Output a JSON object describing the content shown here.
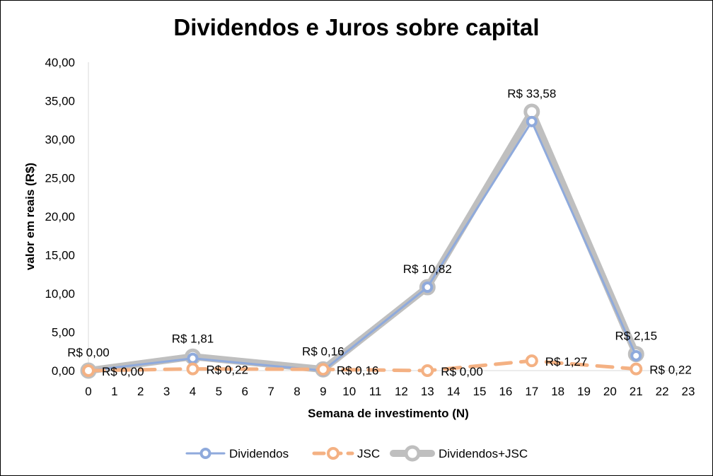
{
  "chart_data": {
    "type": "line",
    "title": "Dividendos e Juros sobre capital",
    "xlabel": "Semana de investimento (N)",
    "ylabel": "valor em reais (R$)",
    "xlim": [
      0,
      23
    ],
    "ylim": [
      0,
      40
    ],
    "x_ticks": [
      "0",
      "1",
      "2",
      "3",
      "4",
      "5",
      "6",
      "7",
      "8",
      "9",
      "10",
      "11",
      "12",
      "13",
      "14",
      "15",
      "16",
      "17",
      "18",
      "19",
      "20",
      "21",
      "22",
      "23"
    ],
    "y_ticks": [
      {
        "value": 0,
        "label": "0,00"
      },
      {
        "value": 5,
        "label": "5,00"
      },
      {
        "value": 10,
        "label": "10,00"
      },
      {
        "value": 15,
        "label": "15,00"
      },
      {
        "value": 20,
        "label": "20,00"
      },
      {
        "value": 25,
        "label": "25,00"
      },
      {
        "value": 30,
        "label": "30,00"
      },
      {
        "value": 35,
        "label": "35,00"
      },
      {
        "value": 40,
        "label": "40,00"
      }
    ],
    "grid": false,
    "legend_position": "bottom",
    "series": [
      {
        "name": "Dividendos",
        "color": "#8FAADC",
        "style": "solid",
        "x": [
          0,
          4,
          9,
          13,
          17,
          21
        ],
        "y": [
          0.0,
          1.59,
          0.0,
          10.82,
          32.31,
          1.93
        ]
      },
      {
        "name": "JSC",
        "color": "#F4B183",
        "style": "dashed",
        "x": [
          0,
          4,
          9,
          13,
          17,
          21
        ],
        "y": [
          0.0,
          0.22,
          0.16,
          0.0,
          1.27,
          0.22
        ],
        "labels": [
          "R$ 0,00",
          "R$ 0,22",
          "R$ 0,16",
          "R$ 0,00",
          "R$ 1,27",
          "R$ 0,22"
        ]
      },
      {
        "name": "Dividendos+JSC",
        "color": "#BFBFBF",
        "style": "solid",
        "x": [
          0,
          4,
          9,
          13,
          17,
          21
        ],
        "y": [
          0.0,
          1.81,
          0.16,
          10.82,
          33.58,
          2.15
        ],
        "labels": [
          "R$ 0,00",
          "R$ 1,81",
          "R$ 0,16",
          "R$ 10,82",
          "R$ 33,58",
          "R$ 2,15"
        ]
      }
    ]
  }
}
